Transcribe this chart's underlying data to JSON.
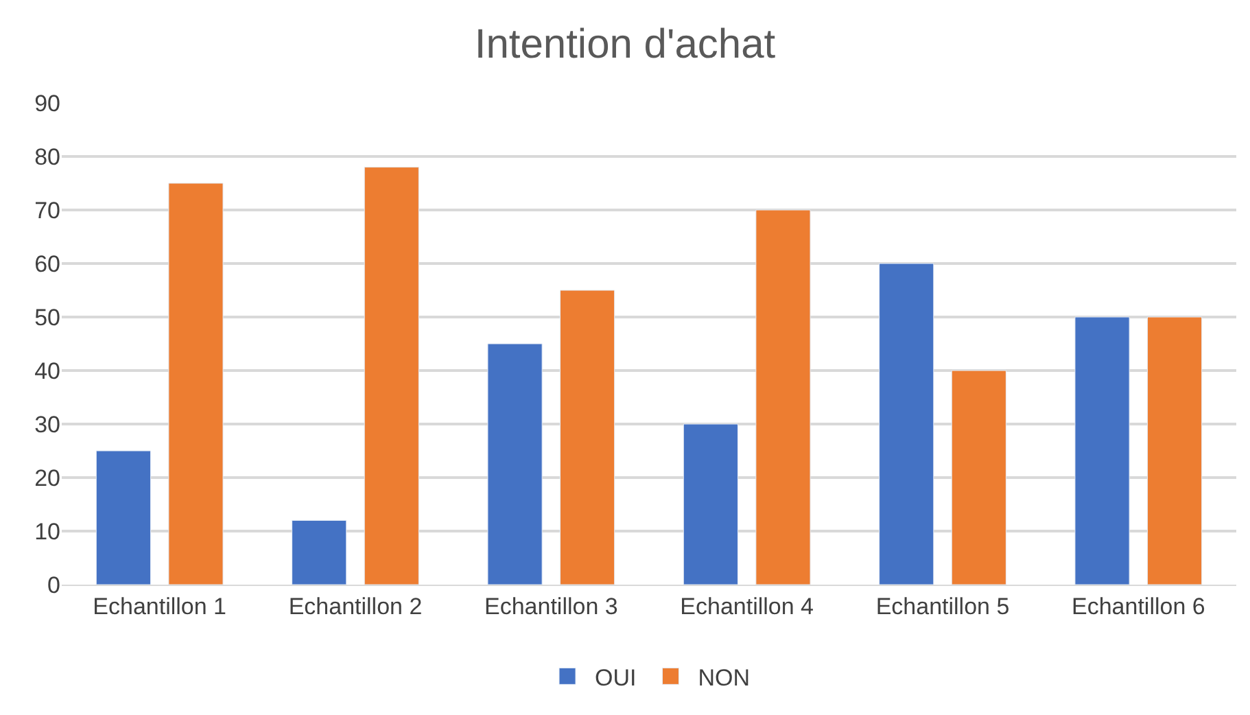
{
  "chart_data": {
    "type": "bar",
    "title": "Intention d'achat",
    "categories": [
      "Echantillon 1",
      "Echantillon 2",
      "Echantillon 3",
      "Echantillon 4",
      "Echantillon 5",
      "Echantillon 6"
    ],
    "series": [
      {
        "name": "OUI",
        "color": "#4472c4",
        "values": [
          25,
          12,
          45,
          30,
          60,
          50
        ]
      },
      {
        "name": "NON",
        "color": "#ed7d31",
        "values": [
          75,
          78,
          55,
          70,
          40,
          50
        ]
      }
    ],
    "ylim": [
      0,
      90
    ],
    "yticks": [
      0,
      10,
      20,
      30,
      40,
      50,
      60,
      70,
      80,
      90
    ],
    "grid": "y",
    "legend": "bottom"
  }
}
